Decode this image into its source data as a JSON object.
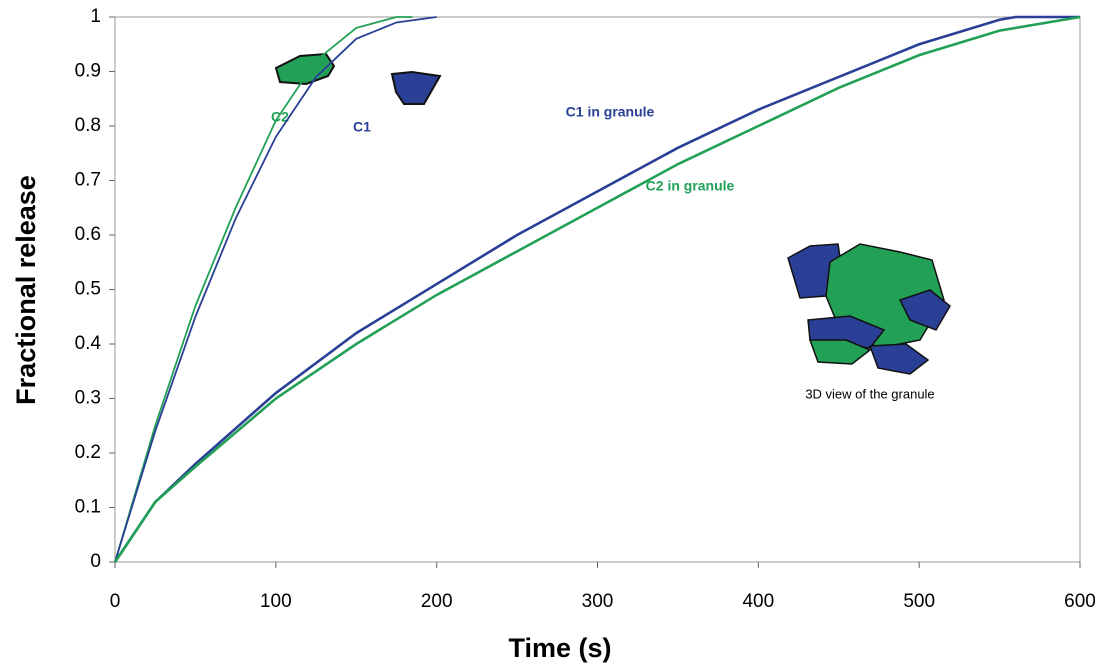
{
  "chart_data": {
    "type": "line",
    "x_label": "Time (s)",
    "y_label": "Fractional release",
    "xlim": [
      0,
      600
    ],
    "xticks": [
      0,
      100,
      200,
      300,
      400,
      500,
      600
    ],
    "ylim": [
      0,
      1
    ],
    "yticks": [
      0,
      0.1,
      0.2,
      0.3,
      0.4,
      0.5,
      0.6,
      0.7,
      0.8,
      0.9,
      1
    ],
    "series": [
      {
        "name": "C2",
        "color": "#22a055",
        "x": [
          0,
          25,
          50,
          75,
          100,
          125,
          150,
          175,
          185
        ],
        "values": [
          0,
          0.25,
          0.47,
          0.65,
          0.81,
          0.92,
          0.98,
          1.0,
          1.0
        ]
      },
      {
        "name": "C1",
        "color": "#2a3f96",
        "x": [
          0,
          25,
          50,
          75,
          100,
          125,
          150,
          175,
          200
        ],
        "values": [
          0,
          0.24,
          0.45,
          0.63,
          0.78,
          0.89,
          0.96,
          0.99,
          1.0
        ]
      },
      {
        "name": "C1 in granule",
        "color": "#2a3f96",
        "x": [
          0,
          25,
          50,
          100,
          150,
          200,
          250,
          300,
          350,
          400,
          450,
          500,
          550,
          560,
          600
        ],
        "values": [
          0,
          0.11,
          0.18,
          0.31,
          0.42,
          0.51,
          0.6,
          0.68,
          0.76,
          0.83,
          0.89,
          0.95,
          0.995,
          1.0,
          1.0
        ]
      },
      {
        "name": "C2 in granule",
        "color": "#22a055",
        "x": [
          0,
          25,
          50,
          100,
          150,
          200,
          250,
          300,
          350,
          400,
          450,
          500,
          550,
          600
        ],
        "values": [
          0,
          0.11,
          0.175,
          0.3,
          0.4,
          0.49,
          0.57,
          0.65,
          0.73,
          0.8,
          0.87,
          0.93,
          0.975,
          1.0
        ]
      }
    ],
    "annotations": [
      "3D view of the granule"
    ]
  }
}
